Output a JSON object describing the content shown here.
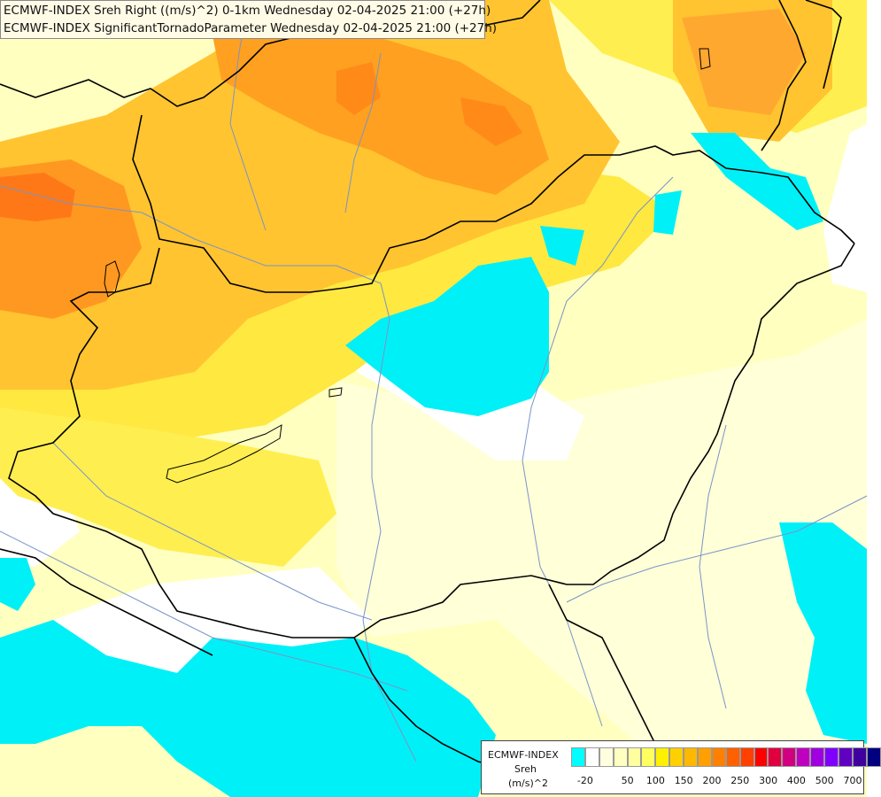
{
  "title": {
    "line1": "ECMWF-INDEX Sreh Right ((m/s)^2) 0-1km Wednesday 02-04-2025 21:00 (+27h)",
    "line2": "ECMWF-INDEX SignificantTornadoParameter Wednesday 02-04-2025 21:00 (+27h)"
  },
  "legend": {
    "name": "ECMWF-INDEX",
    "variable": "Sreh",
    "unit": "(m/s)^2",
    "colors": [
      "#00ffff",
      "#ffffff",
      "#ffffe0",
      "#ffffc0",
      "#ffffa0",
      "#ffff60",
      "#fff000",
      "#ffd000",
      "#ffb800",
      "#ffa000",
      "#ff8000",
      "#ff6000",
      "#ff4000",
      "#ff0000",
      "#e00040",
      "#d00080",
      "#c000c0",
      "#a000e0",
      "#8000ff",
      "#6000c0",
      "#4000a0",
      "#000080"
    ],
    "labels": [
      {
        "text": "-20",
        "slot": 0
      },
      {
        "text": "50",
        "slot": 3
      },
      {
        "text": "100",
        "slot": 5
      },
      {
        "text": "150",
        "slot": 7
      },
      {
        "text": "200",
        "slot": 9
      },
      {
        "text": "250",
        "slot": 11
      },
      {
        "text": "300",
        "slot": 13
      },
      {
        "text": "400",
        "slot": 15
      },
      {
        "text": "500",
        "slot": 17
      },
      {
        "text": "700",
        "slot": 19
      }
    ]
  }
}
